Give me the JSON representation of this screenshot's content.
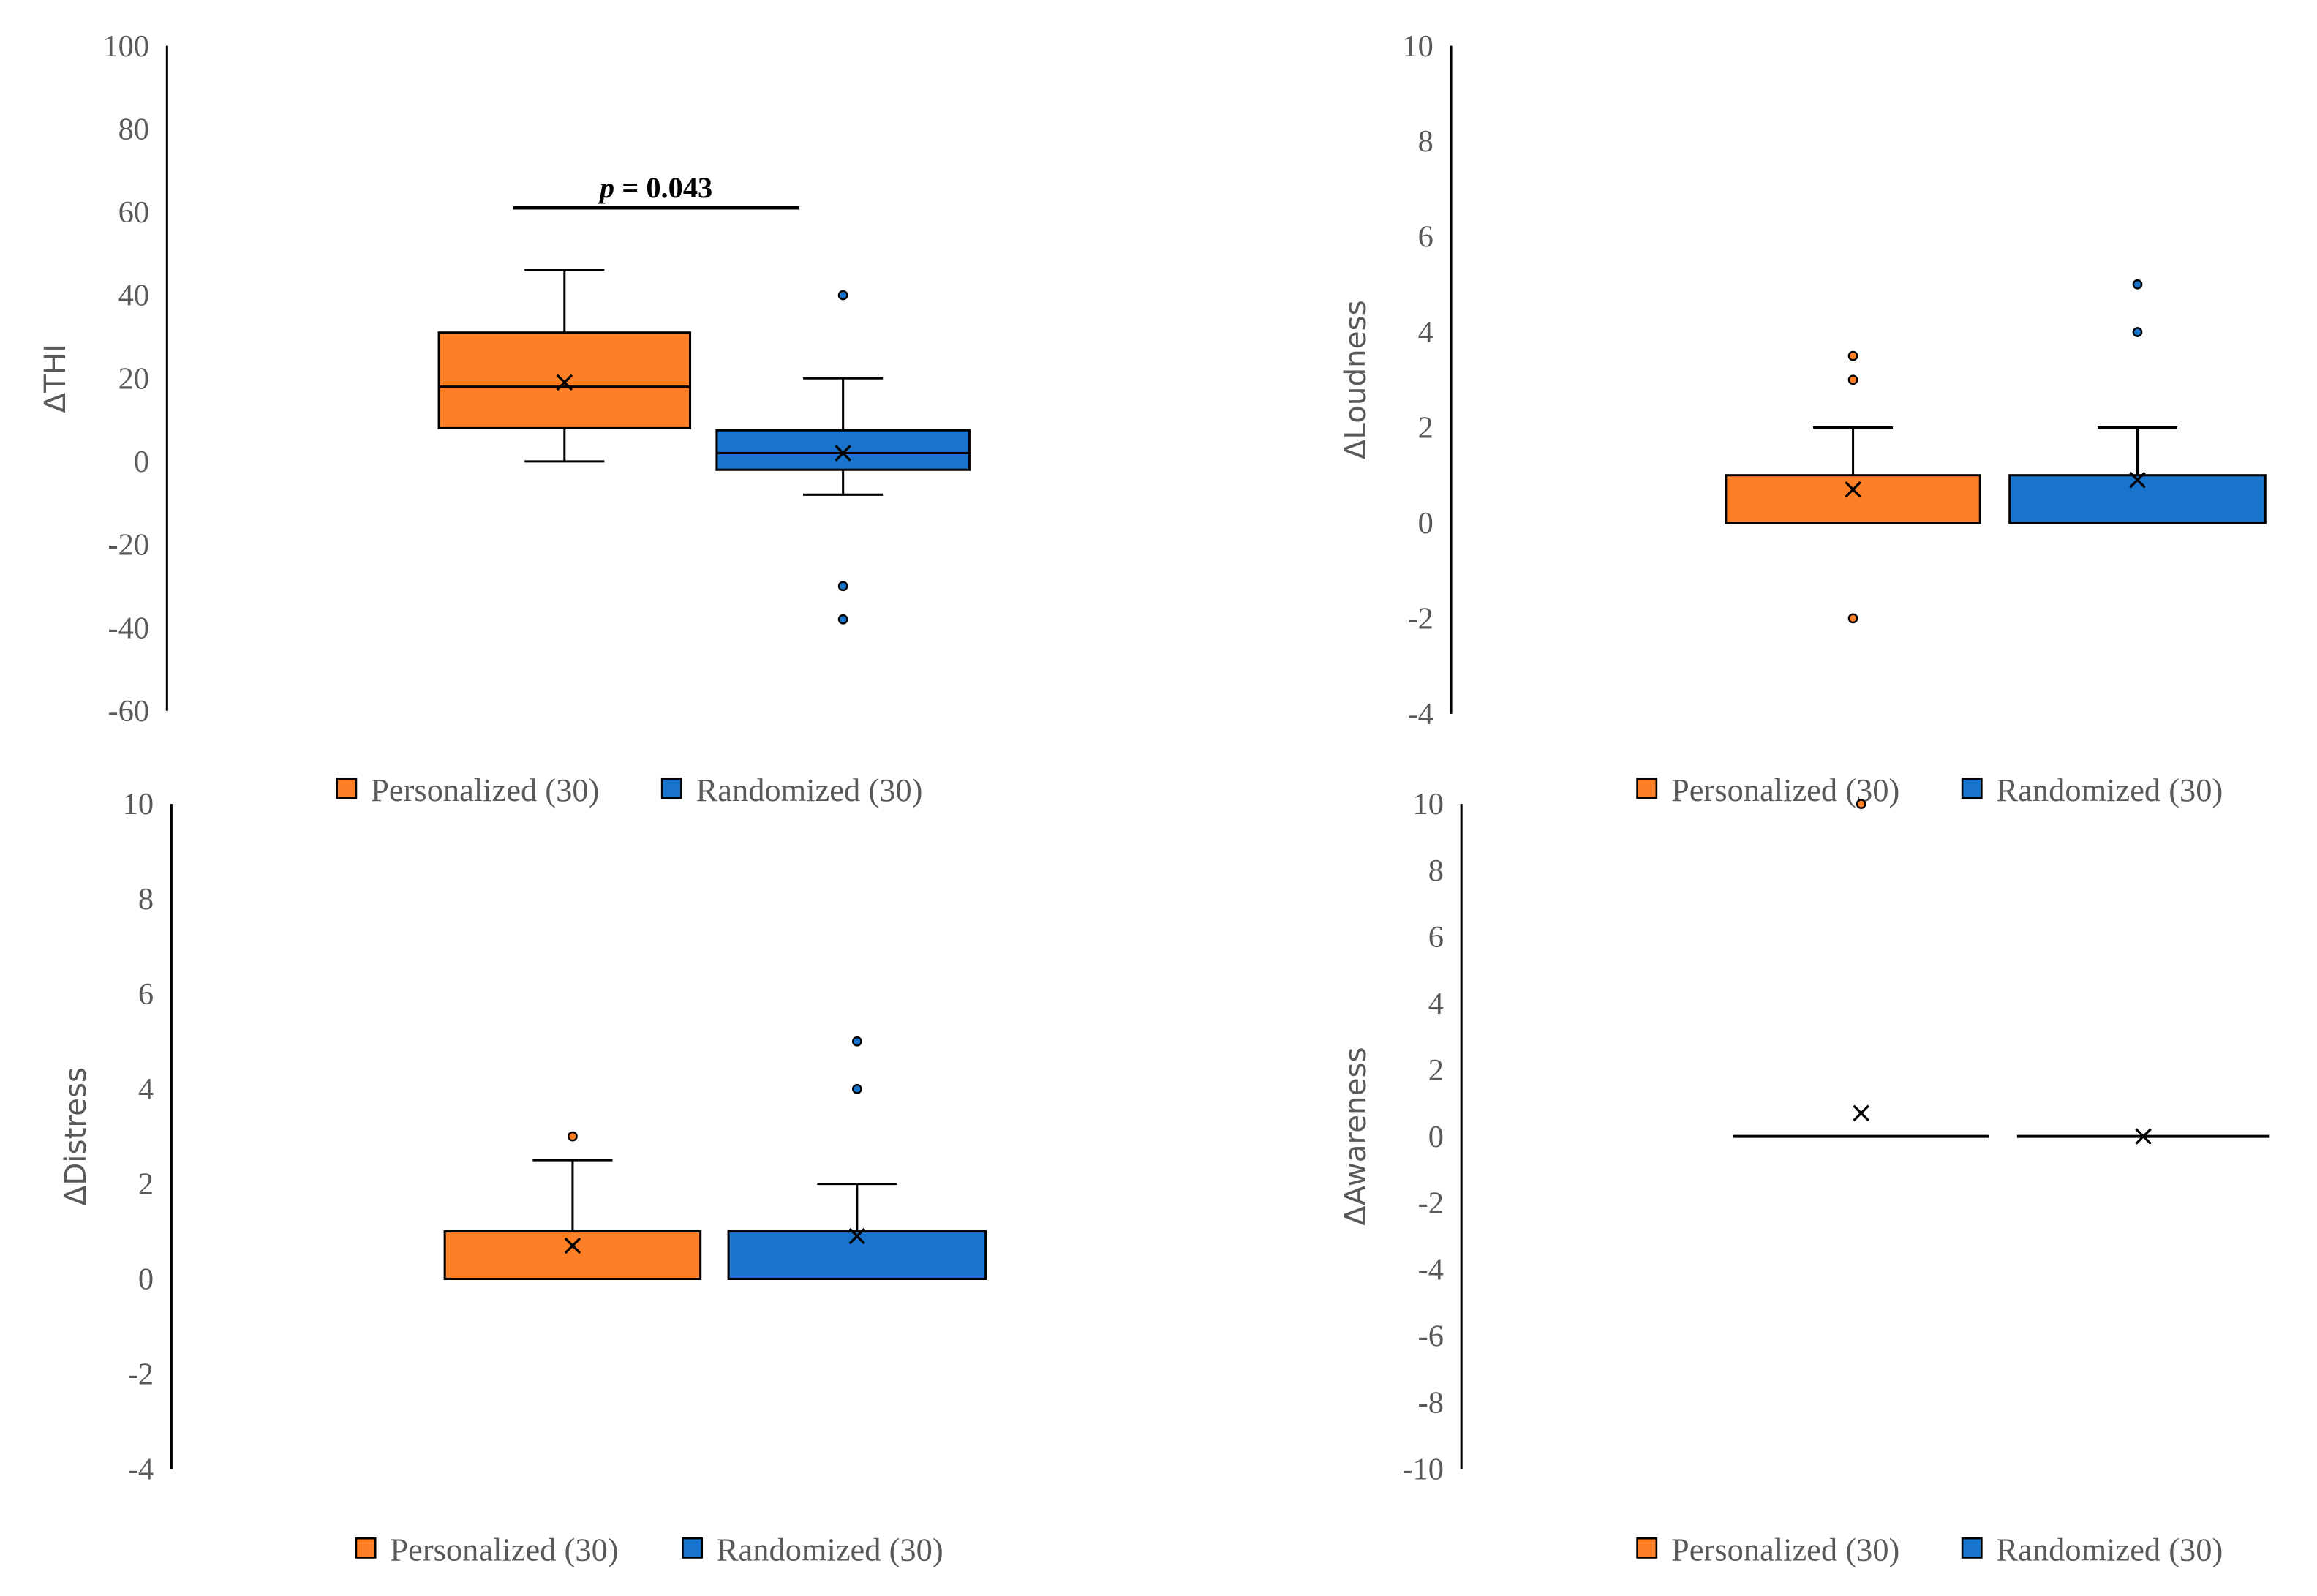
{
  "chart_data": [
    {
      "type": "box",
      "ylabel": "ΔTHI",
      "ylim": [
        -60,
        100
      ],
      "yticks": [
        100,
        80,
        60,
        40,
        20,
        0,
        -20,
        -40,
        -60
      ],
      "annotation": {
        "text_italic": "p",
        "text": " = 0.043",
        "y": 61
      },
      "legend": [
        "Personalized (30)",
        "Randomized (30)"
      ],
      "series": [
        {
          "name": "Personalized (30)",
          "color": "#FF7F27",
          "min": 0,
          "q1": 8,
          "median": 18,
          "q3": 31,
          "max": 46,
          "mean": 19,
          "outliers": []
        },
        {
          "name": "Randomized (30)",
          "color": "#1874CD",
          "min": -8,
          "q1": -2,
          "median": 2,
          "q3": 7.5,
          "max": 20,
          "mean": 2,
          "outliers": [
            40,
            -30,
            -38
          ]
        }
      ]
    },
    {
      "type": "box",
      "ylabel": "ΔLoudness",
      "ylim": [
        -4,
        10
      ],
      "yticks": [
        10,
        8,
        6,
        4,
        2,
        0,
        -2,
        -4
      ],
      "legend": [
        "Personalized (30)",
        "Randomized (30)"
      ],
      "series": [
        {
          "name": "Personalized (30)",
          "color": "#FF7F27",
          "min": 0,
          "q1": 0,
          "median": 0,
          "q3": 1,
          "max": 2,
          "mean": 0.7,
          "outliers": [
            3.5,
            3,
            -2
          ]
        },
        {
          "name": "Randomized (30)",
          "color": "#1874CD",
          "min": 0,
          "q1": 0,
          "median": 0,
          "q3": 1,
          "max": 2,
          "mean": 0.9,
          "outliers": [
            5,
            4
          ]
        }
      ]
    },
    {
      "type": "box",
      "ylabel": "ΔDistress",
      "ylim": [
        -4,
        10
      ],
      "yticks": [
        10,
        8,
        6,
        4,
        2,
        0,
        -2,
        -4
      ],
      "legend": [
        "Personalized (30)",
        "Randomized (30)"
      ],
      "series": [
        {
          "name": "Personalized (30)",
          "color": "#FF7F27",
          "min": 0,
          "q1": 0,
          "median": 0,
          "q3": 1,
          "max": 2.5,
          "mean": 0.7,
          "outliers": [
            3
          ]
        },
        {
          "name": "Randomized (30)",
          "color": "#1874CD",
          "min": 0,
          "q1": 0,
          "median": 0,
          "q3": 1,
          "max": 2,
          "mean": 0.9,
          "outliers": [
            5,
            4
          ]
        }
      ]
    },
    {
      "type": "box",
      "ylabel": "ΔAwareness",
      "ylim": [
        -10,
        10
      ],
      "yticks": [
        10,
        8,
        6,
        4,
        2,
        0,
        -2,
        -4,
        -6,
        -8,
        -10
      ],
      "legend": [
        "Personalized (30)",
        "Randomized (30)"
      ],
      "series": [
        {
          "name": "Personalized (30)",
          "color": "#FF7F27",
          "min": 0,
          "q1": 0,
          "median": 0,
          "q3": 0,
          "max": 0,
          "mean": 0.7,
          "outliers": [
            10
          ]
        },
        {
          "name": "Randomized (30)",
          "color": "#1874CD",
          "min": 0,
          "q1": 0,
          "median": 0,
          "q3": 0,
          "max": 0,
          "mean": 0,
          "outliers": []
        }
      ]
    }
  ]
}
